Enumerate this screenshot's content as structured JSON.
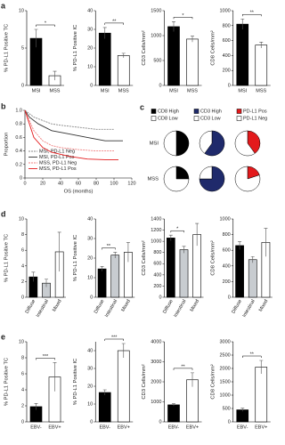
{
  "chart_data": [
    {
      "type": "bar",
      "panel": "a",
      "ylabel": "% PD-L1 Positive TC",
      "categories": [
        "MSI",
        "MSS"
      ],
      "values": [
        6.3,
        1.3
      ],
      "errors": [
        1.2,
        0.6
      ],
      "colors": [
        "#000000",
        "#ffffff"
      ],
      "ylim": [
        0,
        10
      ],
      "yticks": [
        0,
        5,
        10
      ],
      "significance": "*"
    },
    {
      "type": "bar",
      "ylabel": "% PD-L1 Positive IC",
      "categories": [
        "MSI",
        "MSS"
      ],
      "values": [
        28,
        16
      ],
      "errors": [
        3,
        1.2
      ],
      "colors": [
        "#000000",
        "#ffffff"
      ],
      "ylim": [
        0,
        40
      ],
      "yticks": [
        0,
        10,
        20,
        30,
        40
      ],
      "significance": "**"
    },
    {
      "type": "bar",
      "ylabel": "CD3 Cells/mm²",
      "categories": [
        "MSI",
        "MSS"
      ],
      "values": [
        1180,
        930
      ],
      "errors": [
        100,
        60
      ],
      "colors": [
        "#000000",
        "#ffffff"
      ],
      "ylim": [
        0,
        1500
      ],
      "yticks": [
        0,
        500,
        1000,
        1500
      ],
      "significance": "*"
    },
    {
      "type": "bar",
      "ylabel": "CD8 Cells/mm²",
      "categories": [
        "MSI",
        "MSS"
      ],
      "values": [
        820,
        540
      ],
      "errors": [
        70,
        40
      ],
      "colors": [
        "#000000",
        "#ffffff"
      ],
      "ylim": [
        0,
        1000
      ],
      "yticks": [
        0,
        200,
        400,
        600,
        800,
        1000
      ],
      "significance": "**"
    },
    {
      "type": "line",
      "panel": "b",
      "ylabel": "Proportion",
      "xlabel": "OS (months)",
      "xlim": [
        0,
        120
      ],
      "xticks": [
        0,
        20,
        40,
        60,
        80,
        100,
        120
      ],
      "ylim": [
        0,
        1.0
      ],
      "yticks": [
        0,
        0.2,
        0.4,
        0.6,
        0.8,
        {
          "value": 1.0,
          "label": "1.0"
        }
      ],
      "series": [
        {
          "name": "MSI, PD-L1 Neg",
          "color": "#888888",
          "dash": "2,1",
          "x": [
            0,
            5,
            10,
            20,
            30,
            40,
            60,
            80,
            100
          ],
          "values": [
            1,
            0.95,
            0.9,
            0.85,
            0.8,
            0.78,
            0.75,
            0.72,
            0.72
          ]
        },
        {
          "name": "MSI, PD-L1 Pos",
          "color": "#333333",
          "dash": "",
          "x": [
            0,
            5,
            15,
            30,
            50,
            70,
            90,
            110
          ],
          "values": [
            1,
            0.9,
            0.8,
            0.7,
            0.65,
            0.6,
            0.55,
            0.55
          ]
        },
        {
          "name": "MSS, PD-L1 Neg",
          "color": "#f08080",
          "dash": "2,1",
          "x": [
            0,
            5,
            10,
            20,
            30,
            40,
            60,
            80,
            100
          ],
          "values": [
            1,
            0.85,
            0.7,
            0.55,
            0.48,
            0.45,
            0.42,
            0.4,
            0.4
          ]
        },
        {
          "name": "MSS, PD-L1 Pos",
          "color": "#e31a1c",
          "dash": "",
          "x": [
            0,
            5,
            10,
            20,
            30,
            50,
            70,
            90,
            105
          ],
          "values": [
            1,
            0.8,
            0.6,
            0.45,
            0.38,
            0.32,
            0.28,
            0.27,
            0.27
          ]
        }
      ]
    },
    {
      "type": "pie",
      "panel": "c",
      "legend": [
        {
          "name": "CD8 High",
          "color": "#000000"
        },
        {
          "name": "CD8 Low",
          "color": "#ffffff"
        },
        {
          "name": "CD3 High",
          "color": "#1f2a6b"
        },
        {
          "name": "CD3 Low",
          "color": "#ffffff"
        },
        {
          "name": "PD-L1 Pos",
          "color": "#e31a1c"
        },
        {
          "name": "PD-L1 Neg",
          "color": "#ffffff"
        }
      ],
      "rows": [
        "MSI",
        "MSS"
      ],
      "values": [
        [
          [
            50,
            50
          ],
          [
            60,
            40
          ],
          [
            40,
            60
          ]
        ],
        [
          [
            25,
            75
          ],
          [
            75,
            25
          ],
          [
            20,
            80
          ]
        ]
      ]
    },
    {
      "type": "bar",
      "panel": "d",
      "ylabel": "% PD-L1 Positive TC",
      "categories": [
        "Diffuse",
        "Intestinal",
        "Mixed"
      ],
      "values": [
        2.6,
        1.8,
        5.8
      ],
      "errors": [
        0.6,
        0.5,
        2.5
      ],
      "colors": [
        "#000000",
        "#c8ccd0",
        "#ffffff"
      ],
      "ylim": [
        0,
        10
      ],
      "yticks": [
        0,
        2,
        4,
        6,
        8,
        10
      ]
    },
    {
      "type": "bar",
      "ylabel": "% PD-L1 Positive IC",
      "categories": [
        "Diffuse",
        "Intestinal",
        "Mixed"
      ],
      "values": [
        14.5,
        21.5,
        23
      ],
      "errors": [
        1.2,
        1.5,
        5
      ],
      "colors": [
        "#000000",
        "#c8ccd0",
        "#ffffff"
      ],
      "ylim": [
        0,
        40
      ],
      "yticks": [
        0,
        10,
        20,
        30,
        40
      ],
      "significance": "**"
    },
    {
      "type": "bar",
      "ylabel": "CD3 Cells/mm²",
      "categories": [
        "Diffuse",
        "Intestinal",
        "Mixed"
      ],
      "values": [
        1060,
        850,
        1120
      ],
      "errors": [
        50,
        60,
        200
      ],
      "colors": [
        "#000000",
        "#c8ccd0",
        "#ffffff"
      ],
      "ylim": [
        0,
        1400
      ],
      "yticks": [
        0,
        200,
        400,
        600,
        800,
        1000,
        1200,
        1400
      ],
      "significance": "*"
    },
    {
      "type": "bar",
      "ylabel": "CD8 Cells/mm²",
      "categories": [
        "Diffuse",
        "Intestinal",
        "Mixed"
      ],
      "values": [
        660,
        480,
        700
      ],
      "errors": [
        50,
        40,
        180
      ],
      "colors": [
        "#000000",
        "#c8ccd0",
        "#ffffff"
      ],
      "ylim": [
        0,
        1000
      ],
      "yticks": [
        0,
        200,
        400,
        600,
        800,
        1000
      ]
    },
    {
      "type": "bar",
      "panel": "e",
      "ylabel": "% PD-L1 Positive TC",
      "categories": [
        "EBV-",
        "EBV+"
      ],
      "values": [
        1.9,
        5.6
      ],
      "errors": [
        0.4,
        1.8
      ],
      "colors": [
        "#000000",
        "#ffffff"
      ],
      "ylim": [
        0,
        10
      ],
      "yticks": [
        0,
        2,
        4,
        6,
        8,
        10
      ],
      "significance": "***"
    },
    {
      "type": "bar",
      "ylabel": "% PD-L1 Positive IC",
      "categories": [
        "EBV-",
        "EBV+"
      ],
      "values": [
        16.5,
        40
      ],
      "errors": [
        1.5,
        4
      ],
      "colors": [
        "#000000",
        "#ffffff"
      ],
      "ylim": [
        0,
        45
      ],
      "yticks": [
        0,
        10,
        20,
        30,
        40
      ],
      "significance": "***"
    },
    {
      "type": "bar",
      "ylabel": "CD3 Cells/mm²",
      "categories": [
        "EBV-",
        "EBV+"
      ],
      "values": [
        850,
        2100
      ],
      "errors": [
        60,
        350
      ],
      "colors": [
        "#000000",
        "#ffffff"
      ],
      "ylim": [
        0,
        4000
      ],
      "yticks": [
        0,
        1000,
        2000,
        3000,
        4000
      ],
      "significance": "**"
    },
    {
      "type": "bar",
      "ylabel": "CD8 Cells/mm²",
      "categories": [
        "EBV-",
        "EBV+"
      ],
      "values": [
        450,
        2050
      ],
      "errors": [
        60,
        250
      ],
      "colors": [
        "#000000",
        "#ffffff"
      ],
      "ylim": [
        0,
        3000
      ],
      "yticks": [
        0,
        500,
        1000,
        1500,
        2000,
        2500,
        3000
      ],
      "significance": "**"
    }
  ]
}
